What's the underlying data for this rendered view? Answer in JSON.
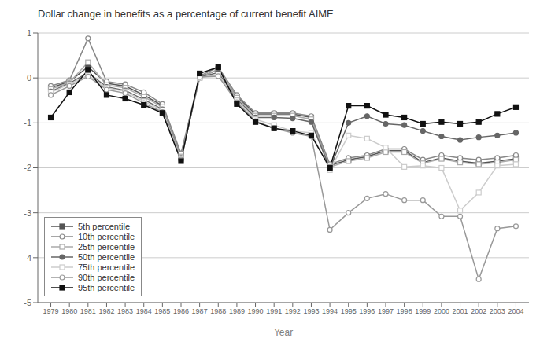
{
  "chart_data": {
    "type": "line",
    "title": "Dollar change in benefits as a percentage of current benefit AIME",
    "x_label": "Year",
    "x": [
      1979,
      1980,
      1981,
      1982,
      1983,
      1984,
      1985,
      1986,
      1987,
      1988,
      1989,
      1990,
      1991,
      1992,
      1993,
      1994,
      1995,
      1996,
      1997,
      1998,
      1999,
      2000,
      2001,
      2002,
      2003,
      2004
    ],
    "xlim": [
      1978.3,
      2004.7
    ],
    "xticks": [
      1979,
      1980,
      1981,
      1982,
      1983,
      1984,
      1985,
      1986,
      1987,
      1988,
      1989,
      1990,
      1991,
      1992,
      1993,
      1994,
      1995,
      1996,
      1997,
      1998,
      1999,
      2000,
      2001,
      2002,
      2003,
      2004
    ],
    "ylim": [
      -5,
      1
    ],
    "yticks": [
      1,
      0,
      -1,
      -2,
      -3,
      -4,
      -5
    ],
    "grid": true,
    "legend": "lower left",
    "series": [
      {
        "name": "5th percentile",
        "color": "#555555",
        "marker": "square",
        "values": [
          -0.22,
          -0.08,
          0.25,
          -0.12,
          -0.18,
          -0.38,
          -0.62,
          -1.72,
          0.02,
          0.18,
          -0.42,
          -0.8,
          -0.8,
          -0.8,
          -0.88,
          -1.95,
          -1.82,
          -1.75,
          -1.62,
          -1.62,
          -1.88,
          -1.78,
          -1.85,
          -1.9,
          -1.85,
          -1.8
        ]
      },
      {
        "name": "10th percentile",
        "color": "#888888",
        "marker": "open_circle",
        "values": [
          -0.18,
          -0.05,
          0.88,
          -0.08,
          -0.14,
          -0.32,
          -0.58,
          -1.68,
          0.04,
          0.24,
          -0.38,
          -0.78,
          -0.78,
          -0.78,
          -0.85,
          -1.92,
          -1.78,
          -1.72,
          -1.58,
          -1.58,
          -1.82,
          -1.72,
          -1.78,
          -1.82,
          -1.78,
          -1.72
        ]
      },
      {
        "name": "25th percentile",
        "color": "#aaaaaa",
        "marker": "open_square",
        "values": [
          -0.25,
          -0.1,
          0.35,
          -0.16,
          -0.22,
          -0.42,
          -0.65,
          -1.75,
          0.0,
          0.2,
          -0.44,
          -0.84,
          -0.84,
          -0.84,
          -0.92,
          -1.98,
          -1.85,
          -1.78,
          -1.65,
          -1.65,
          -1.9,
          -1.8,
          -1.88,
          -1.92,
          -1.88,
          -1.82
        ]
      },
      {
        "name": "50th percentile",
        "color": "#666666",
        "marker": "circle",
        "values": [
          -0.3,
          -0.12,
          0.12,
          -0.2,
          -0.28,
          -0.48,
          -0.7,
          -1.78,
          0.02,
          0.12,
          -0.48,
          -0.88,
          -0.88,
          -0.9,
          -0.98,
          -2.02,
          -1.0,
          -0.85,
          -1.02,
          -1.05,
          -1.18,
          -1.3,
          -1.38,
          -1.32,
          -1.28,
          -1.22
        ]
      },
      {
        "name": "75th percentile",
        "color": "#cccccc",
        "marker": "open_square",
        "values": [
          -0.32,
          -0.14,
          0.06,
          -0.22,
          -0.3,
          -0.52,
          -0.72,
          -1.8,
          0.0,
          0.08,
          -0.5,
          -0.92,
          -1.05,
          -1.18,
          -1.22,
          -2.05,
          -1.28,
          -1.35,
          -1.55,
          -1.98,
          -1.95,
          -2.0,
          -2.95,
          -2.55,
          -1.95,
          -1.92
        ]
      },
      {
        "name": "90th percentile",
        "color": "#999999",
        "marker": "open_circle",
        "values": [
          -0.38,
          -0.18,
          0.03,
          -0.26,
          -0.34,
          -0.56,
          -0.76,
          -1.82,
          0.02,
          0.04,
          -0.54,
          -0.96,
          -1.12,
          -1.22,
          -1.3,
          -3.38,
          -3.0,
          -2.68,
          -2.58,
          -2.72,
          -2.72,
          -3.08,
          -3.08,
          -4.48,
          -3.35,
          -3.3
        ]
      },
      {
        "name": "95th percentile",
        "color": "#111111",
        "marker": "square",
        "values": [
          -0.88,
          -0.32,
          0.18,
          -0.38,
          -0.46,
          -0.6,
          -0.78,
          -1.85,
          0.1,
          0.24,
          -0.58,
          -0.98,
          -1.12,
          -1.18,
          -1.28,
          -2.0,
          -0.62,
          -0.62,
          -0.82,
          -0.88,
          -1.02,
          -0.98,
          -1.02,
          -0.98,
          -0.8,
          -0.65
        ]
      }
    ]
  }
}
